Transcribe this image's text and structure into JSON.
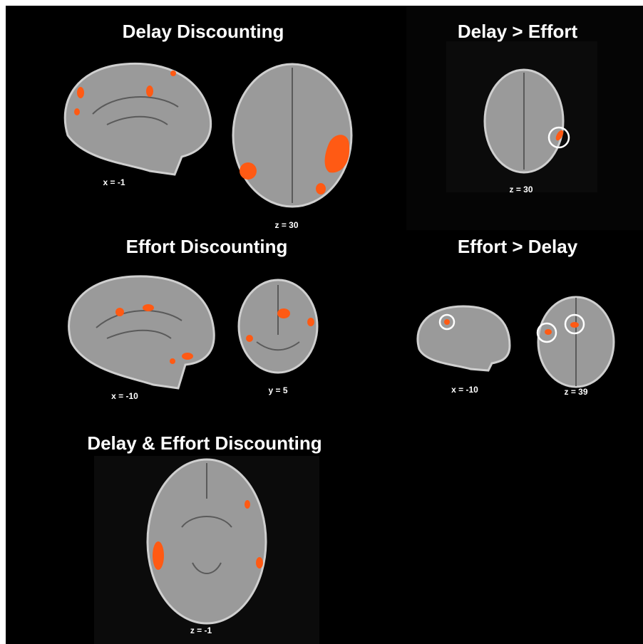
{
  "panels": [
    {
      "title": "Delay Discounting",
      "images": [
        {
          "label": "x = -1"
        },
        {
          "label": "z = 30"
        }
      ]
    },
    {
      "title": "Delay > Effort",
      "images": [
        {
          "label": "z = 30"
        }
      ]
    },
    {
      "title": "Effort Discounting",
      "images": [
        {
          "label": "x = -10"
        },
        {
          "label": "y = 5"
        }
      ]
    },
    {
      "title": "Effort > Delay",
      "images": [
        {
          "label": "x = -10"
        },
        {
          "label": "z = 39"
        }
      ]
    },
    {
      "title": "Delay & Effort Discounting",
      "images": [
        {
          "label": "z = -1"
        }
      ]
    }
  ]
}
